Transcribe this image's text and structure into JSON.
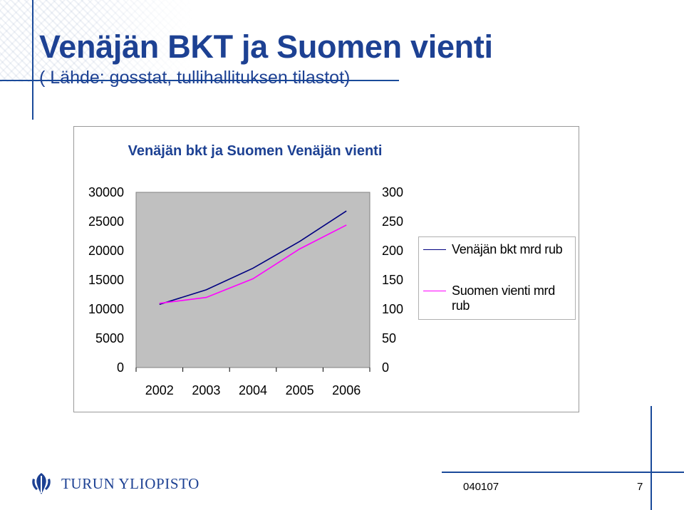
{
  "slide": {
    "title": "Venäjän BKT ja Suomen vienti",
    "subtitle": "( Lähde: gosstat, tullihallituksen tilastot)"
  },
  "footer": {
    "logo_text": "TURUN YLIOPISTO",
    "date": "040107",
    "page": "7"
  },
  "colors": {
    "title": "#1d4193",
    "plot_area": "#c0c0c0",
    "series_bkt": "#000080",
    "series_vienti": "#ff00ff"
  },
  "chart_data": {
    "type": "line",
    "title": "Venäjän bkt ja Suomen Venäjän vienti",
    "categories": [
      "2002",
      "2003",
      "2004",
      "2005",
      "2006"
    ],
    "series": [
      {
        "name": "Venäjän bkt mrd rub",
        "axis": "left",
        "color": "#000080",
        "values": [
          10800,
          13300,
          17000,
          21600,
          26800
        ]
      },
      {
        "name": "Suomen vienti mrd rub",
        "axis": "right",
        "color": "#ff00ff",
        "values": [
          110,
          120,
          152,
          203,
          244
        ]
      }
    ],
    "y_left": {
      "min": 0,
      "max": 30000,
      "ticks": [
        "0",
        "5000",
        "10000",
        "15000",
        "20000",
        "25000",
        "30000"
      ]
    },
    "y_right": {
      "min": 0,
      "max": 300,
      "ticks": [
        "0",
        "50",
        "100",
        "150",
        "200",
        "250",
        "300"
      ]
    },
    "grid": false,
    "legend_position": "right"
  }
}
